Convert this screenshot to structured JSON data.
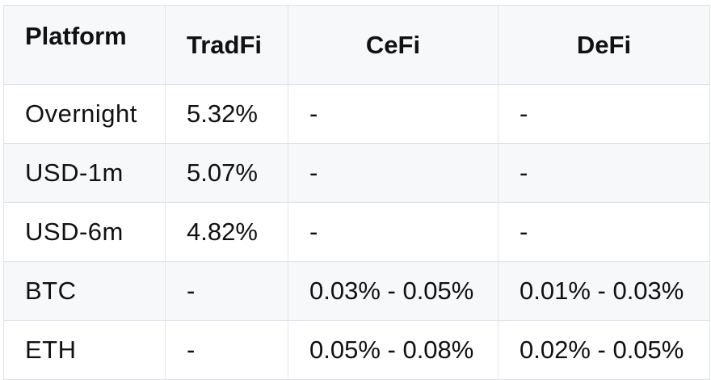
{
  "table": {
    "headers": [
      "Platform",
      "TradFi",
      "CeFi",
      "DeFi"
    ],
    "rows": [
      [
        "Overnight",
        "5.32%",
        "-",
        "-"
      ],
      [
        "USD-1m",
        "5.07%",
        "-",
        "-"
      ],
      [
        "USD-6m",
        "4.82%",
        "-",
        "-"
      ],
      [
        "BTC",
        "-",
        "0.03% - 0.05%",
        "0.01% - 0.03%"
      ],
      [
        "ETH",
        "-",
        "0.05% - 0.08%",
        "0.02% - 0.05%"
      ]
    ]
  },
  "colors": {
    "header_background": "#f6f8fa",
    "stripe_background": "#f6f8fa",
    "border": "#dfe2e6",
    "text": "#111111"
  }
}
